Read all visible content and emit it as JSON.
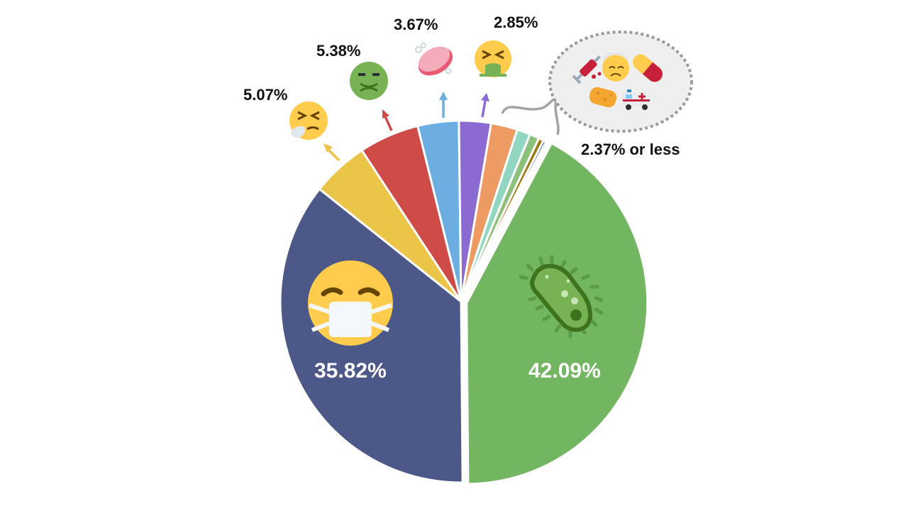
{
  "chart_data": {
    "type": "pie",
    "title": "",
    "center": [
      650,
      425
    ],
    "radius": 255,
    "start_angle_deg": 28,
    "slices": [
      {
        "name": "microbe",
        "icon": "microbe-icon",
        "value": 42.09,
        "label": "42.09%",
        "color": "#73b661",
        "explode": 8
      },
      {
        "name": "face-with-medical-mask",
        "icon": "face-with-medical-mask-icon",
        "value": 35.82,
        "label": "35.82%",
        "color": "#4b5888",
        "explode": 0
      },
      {
        "name": "sneezing-face",
        "icon": "sneezing-face-icon",
        "value": 5.07,
        "label": "5.07%",
        "color": "#ebc548",
        "explode": 0
      },
      {
        "name": "nauseated-face",
        "icon": "nauseated-face-icon",
        "value": 5.38,
        "label": "5.38%",
        "color": "#cf4b47",
        "explode": 0
      },
      {
        "name": "soap",
        "icon": "soap-icon",
        "value": 3.67,
        "label": "3.67%",
        "color": "#6daee2",
        "explode": 0
      },
      {
        "name": "face-vomiting",
        "icon": "face-vomiting-icon",
        "value": 2.85,
        "label": "2.85%",
        "color": "#8b6bd2",
        "explode": 0
      },
      {
        "name": "other-1",
        "value": 2.37,
        "color": "#ee9a63",
        "explode": 0
      },
      {
        "name": "other-2",
        "value": 1.2,
        "color": "#91d6c0",
        "explode": 0
      },
      {
        "name": "other-3",
        "value": 0.85,
        "color": "#8dc07a",
        "explode": 0
      },
      {
        "name": "other-4",
        "value": 0.45,
        "color": "#9a7a10",
        "explode": 0
      },
      {
        "name": "other-5",
        "value": 0.25,
        "color": "#2d5a9a",
        "explode": 0
      }
    ],
    "annotations": {
      "other_group_label": "2.37% or less",
      "other_group_icons": [
        "syringe-icon",
        "face-with-head-bandage-icon",
        "pill-icon",
        "sponge-icon",
        "ambulance-icon"
      ]
    },
    "legend": "none"
  },
  "labels": {
    "sneezing": "5.07%",
    "nauseated": "5.38%",
    "soap": "3.67%",
    "vomiting": "2.85%",
    "other": "2.37% or less",
    "mask": "35.82%",
    "microbe": "42.09%"
  }
}
